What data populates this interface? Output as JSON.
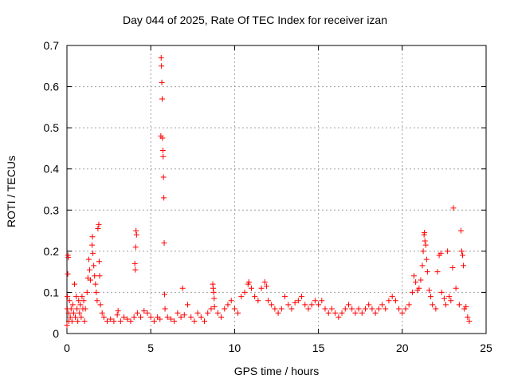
{
  "chart_data": {
    "type": "scatter",
    "title": "Day 044 of 2025, Rate Of TEC Index for receiver izan",
    "xlabel": "GPS time / hours",
    "ylabel": "ROTI / TECUs",
    "xlim": [
      0,
      25
    ],
    "ylim": [
      0,
      0.7
    ],
    "x_ticks": [
      0,
      5,
      10,
      15,
      20,
      25
    ],
    "y_ticks": [
      0,
      0.1,
      0.2,
      0.3,
      0.4,
      0.5,
      0.6,
      0.7
    ],
    "grid": true,
    "marker": "+",
    "marker_color": "#ff0000",
    "series": [
      {
        "points": [
          [
            0.0,
            0.02
          ],
          [
            0.02,
            0.06
          ],
          [
            0.03,
            0.09
          ],
          [
            0.05,
            0.145
          ],
          [
            0.06,
            0.19
          ],
          [
            0.08,
            0.185
          ],
          [
            0.1,
            0.05
          ],
          [
            0.12,
            0.03
          ],
          [
            0.15,
            0.08
          ],
          [
            0.2,
            0.04
          ],
          [
            0.25,
            0.06
          ],
          [
            0.3,
            0.03
          ],
          [
            0.35,
            0.07
          ],
          [
            0.4,
            0.05
          ],
          [
            0.45,
            0.12
          ],
          [
            0.5,
            0.04
          ],
          [
            0.55,
            0.09
          ],
          [
            0.6,
            0.06
          ],
          [
            0.65,
            0.03
          ],
          [
            0.7,
            0.08
          ],
          [
            0.75,
            0.05
          ],
          [
            0.8,
            0.07
          ],
          [
            0.85,
            0.04
          ],
          [
            0.9,
            0.09
          ],
          [
            0.95,
            0.06
          ],
          [
            1.0,
            0.08
          ],
          [
            1.05,
            0.03
          ],
          [
            1.1,
            0.06
          ],
          [
            1.2,
            0.1
          ],
          [
            1.25,
            0.135
          ],
          [
            1.3,
            0.18
          ],
          [
            1.35,
            0.155
          ],
          [
            1.4,
            0.13
          ],
          [
            1.5,
            0.215
          ],
          [
            1.52,
            0.235
          ],
          [
            1.55,
            0.195
          ],
          [
            1.6,
            0.165
          ],
          [
            1.65,
            0.14
          ],
          [
            1.7,
            0.12
          ],
          [
            1.75,
            0.1
          ],
          [
            1.8,
            0.08
          ],
          [
            1.85,
            0.255
          ],
          [
            1.9,
            0.265
          ],
          [
            1.92,
            0.175
          ],
          [
            1.95,
            0.14
          ],
          [
            2.0,
            0.07
          ],
          [
            2.1,
            0.05
          ],
          [
            2.2,
            0.04
          ],
          [
            2.4,
            0.03
          ],
          [
            2.6,
            0.035
          ],
          [
            2.8,
            0.03
          ],
          [
            3.0,
            0.045
          ],
          [
            3.05,
            0.055
          ],
          [
            3.2,
            0.03
          ],
          [
            3.4,
            0.04
          ],
          [
            3.6,
            0.035
          ],
          [
            3.8,
            0.03
          ],
          [
            4.0,
            0.04
          ],
          [
            4.05,
            0.17
          ],
          [
            4.08,
            0.155
          ],
          [
            4.1,
            0.21
          ],
          [
            4.12,
            0.25
          ],
          [
            4.15,
            0.24
          ],
          [
            4.2,
            0.05
          ],
          [
            4.4,
            0.04
          ],
          [
            4.6,
            0.055
          ],
          [
            4.8,
            0.05
          ],
          [
            5.0,
            0.04
          ],
          [
            5.2,
            0.03
          ],
          [
            5.4,
            0.04
          ],
          [
            5.55,
            0.035
          ],
          [
            5.6,
            0.48
          ],
          [
            5.62,
            0.67
          ],
          [
            5.64,
            0.65
          ],
          [
            5.66,
            0.61
          ],
          [
            5.68,
            0.57
          ],
          [
            5.7,
            0.475
          ],
          [
            5.72,
            0.445
          ],
          [
            5.74,
            0.43
          ],
          [
            5.76,
            0.38
          ],
          [
            5.78,
            0.33
          ],
          [
            5.8,
            0.22
          ],
          [
            5.82,
            0.095
          ],
          [
            5.85,
            0.06
          ],
          [
            6.0,
            0.04
          ],
          [
            6.2,
            0.035
          ],
          [
            6.4,
            0.03
          ],
          [
            6.6,
            0.05
          ],
          [
            6.8,
            0.04
          ],
          [
            6.9,
            0.11
          ],
          [
            7.0,
            0.045
          ],
          [
            7.2,
            0.07
          ],
          [
            7.4,
            0.04
          ],
          [
            7.6,
            0.03
          ],
          [
            7.8,
            0.05
          ],
          [
            8.0,
            0.04
          ],
          [
            8.2,
            0.03
          ],
          [
            8.4,
            0.05
          ],
          [
            8.6,
            0.06
          ],
          [
            8.7,
            0.12
          ],
          [
            8.72,
            0.11
          ],
          [
            8.75,
            0.1
          ],
          [
            8.78,
            0.085
          ],
          [
            8.8,
            0.065
          ],
          [
            9.0,
            0.05
          ],
          [
            9.2,
            0.04
          ],
          [
            9.4,
            0.06
          ],
          [
            9.6,
            0.07
          ],
          [
            9.8,
            0.08
          ],
          [
            10.0,
            0.06
          ],
          [
            10.2,
            0.05
          ],
          [
            10.4,
            0.09
          ],
          [
            10.6,
            0.1
          ],
          [
            10.8,
            0.12
          ],
          [
            10.85,
            0.125
          ],
          [
            11.0,
            0.11
          ],
          [
            11.2,
            0.09
          ],
          [
            11.4,
            0.08
          ],
          [
            11.6,
            0.11
          ],
          [
            11.8,
            0.125
          ],
          [
            11.9,
            0.115
          ],
          [
            12.0,
            0.08
          ],
          [
            12.2,
            0.07
          ],
          [
            12.4,
            0.06
          ],
          [
            12.6,
            0.05
          ],
          [
            12.8,
            0.06
          ],
          [
            13.0,
            0.09
          ],
          [
            13.2,
            0.07
          ],
          [
            13.4,
            0.06
          ],
          [
            13.6,
            0.075
          ],
          [
            13.8,
            0.08
          ],
          [
            14.0,
            0.09
          ],
          [
            14.2,
            0.07
          ],
          [
            14.4,
            0.06
          ],
          [
            14.6,
            0.07
          ],
          [
            14.8,
            0.08
          ],
          [
            15.0,
            0.07
          ],
          [
            15.2,
            0.08
          ],
          [
            15.4,
            0.06
          ],
          [
            15.6,
            0.05
          ],
          [
            15.8,
            0.06
          ],
          [
            16.0,
            0.05
          ],
          [
            16.2,
            0.04
          ],
          [
            16.4,
            0.05
          ],
          [
            16.6,
            0.06
          ],
          [
            16.8,
            0.07
          ],
          [
            17.0,
            0.06
          ],
          [
            17.2,
            0.05
          ],
          [
            17.4,
            0.06
          ],
          [
            17.6,
            0.05
          ],
          [
            17.8,
            0.06
          ],
          [
            18.0,
            0.07
          ],
          [
            18.2,
            0.06
          ],
          [
            18.4,
            0.05
          ],
          [
            18.6,
            0.06
          ],
          [
            18.8,
            0.07
          ],
          [
            19.0,
            0.06
          ],
          [
            19.2,
            0.08
          ],
          [
            19.4,
            0.09
          ],
          [
            19.6,
            0.08
          ],
          [
            19.8,
            0.06
          ],
          [
            20.0,
            0.05
          ],
          [
            20.2,
            0.06
          ],
          [
            20.4,
            0.07
          ],
          [
            20.6,
            0.1
          ],
          [
            20.7,
            0.14
          ],
          [
            20.8,
            0.125
          ],
          [
            20.9,
            0.105
          ],
          [
            21.0,
            0.11
          ],
          [
            21.1,
            0.13
          ],
          [
            21.2,
            0.165
          ],
          [
            21.25,
            0.2
          ],
          [
            21.3,
            0.24
          ],
          [
            21.32,
            0.245
          ],
          [
            21.35,
            0.225
          ],
          [
            21.4,
            0.215
          ],
          [
            21.45,
            0.18
          ],
          [
            21.5,
            0.15
          ],
          [
            21.6,
            0.105
          ],
          [
            21.7,
            0.09
          ],
          [
            21.8,
            0.07
          ],
          [
            22.0,
            0.06
          ],
          [
            22.1,
            0.15
          ],
          [
            22.2,
            0.19
          ],
          [
            22.3,
            0.195
          ],
          [
            22.35,
            0.1
          ],
          [
            22.5,
            0.085
          ],
          [
            22.6,
            0.07
          ],
          [
            22.7,
            0.2
          ],
          [
            22.8,
            0.09
          ],
          [
            22.9,
            0.08
          ],
          [
            23.0,
            0.16
          ],
          [
            23.05,
            0.305
          ],
          [
            23.2,
            0.11
          ],
          [
            23.4,
            0.07
          ],
          [
            23.5,
            0.25
          ],
          [
            23.55,
            0.2
          ],
          [
            23.6,
            0.19
          ],
          [
            23.65,
            0.165
          ],
          [
            23.7,
            0.06
          ],
          [
            23.8,
            0.065
          ],
          [
            23.9,
            0.04
          ],
          [
            24.0,
            0.03
          ]
        ]
      }
    ]
  }
}
